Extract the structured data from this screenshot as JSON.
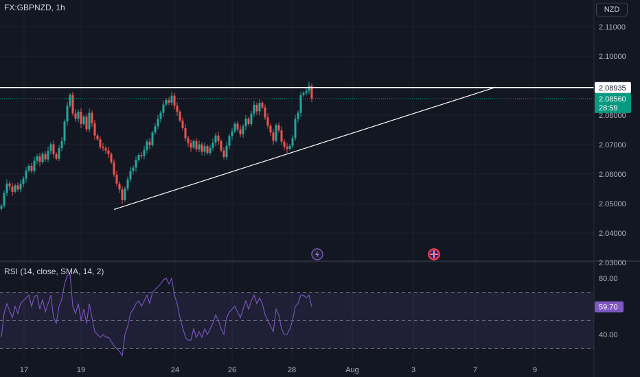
{
  "header": {
    "symbol": "FX:GBPNZD, 1h",
    "currency_button": "NZD"
  },
  "colors": {
    "background": "#131722",
    "up": "#26a69a",
    "down": "#ef5350",
    "rsi_line": "#7e57c2",
    "rsi_band": "#7e57c2",
    "current_price_tag": "#089981",
    "resistance_tag": "#ffffff",
    "rsi_tag": "#7e57c2",
    "trendline": "#ffffff"
  },
  "price_axis": {
    "ticks": [
      "2.11000",
      "2.10000",
      "2.09000",
      "2.08000",
      "2.07000",
      "2.06000",
      "2.05000",
      "2.04000",
      "2.03000"
    ],
    "resistance_label": "2.08935",
    "current_price_label": "2.08560",
    "countdown_label": "28:59"
  },
  "rsi_axis": {
    "ticks": [
      "80.00",
      "40.00"
    ],
    "value_label": "59.70"
  },
  "rsi_title": "RSI (14, close, SMA, 14, 2)",
  "time_axis": [
    "17",
    "19",
    "24",
    "26",
    "28",
    "Aug",
    "3",
    "7",
    "9"
  ],
  "events": [
    {
      "icon": "lightning-icon",
      "name": "economic-event-lightning"
    },
    {
      "icon": "uk-flag-icon",
      "name": "economic-event-uk"
    }
  ],
  "chart_data": {
    "type": "candlestick",
    "symbol": "FX:GBPNZD",
    "interval": "1h",
    "ylim": [
      2.026,
      2.115
    ],
    "price_ticks": [
      2.11,
      2.1,
      2.09,
      2.08,
      2.07,
      2.06,
      2.05,
      2.04,
      2.03
    ],
    "resistance": 2.08935,
    "last_price": 2.0856,
    "x_ticks": [
      "17",
      "19",
      "24",
      "26",
      "28",
      "Aug",
      "3",
      "7",
      "9"
    ],
    "closes": [
      2.0493,
      2.0535,
      2.0568,
      2.0558,
      2.054,
      2.0562,
      2.0548,
      2.0567,
      2.0585,
      2.0612,
      2.0628,
      2.0611,
      2.0645,
      2.066,
      2.0641,
      2.0668,
      2.065,
      2.0679,
      2.0701,
      2.0668,
      2.0652,
      2.0688,
      2.0712,
      2.0778,
      2.0832,
      2.0869,
      2.0806,
      2.0788,
      2.0812,
      2.077,
      2.0795,
      2.0752,
      2.0808,
      2.0772,
      2.0731,
      2.0718,
      2.0692,
      2.0688,
      2.068,
      2.0668,
      2.064,
      2.0598,
      2.0568,
      2.0548,
      2.0512,
      2.0551,
      2.0582,
      2.0611,
      2.0622,
      2.0648,
      2.0665,
      2.0661,
      2.0682,
      2.071,
      2.0698,
      2.0741,
      2.0762,
      2.0787,
      2.0808,
      2.0836,
      2.0851,
      2.0842,
      2.0866,
      2.0832,
      2.0812,
      2.0782,
      2.0756,
      2.0722,
      2.0705,
      2.069,
      2.0712,
      2.0684,
      2.0701,
      2.0676,
      2.0695,
      2.0672,
      2.0689,
      2.0707,
      2.0731,
      2.0712,
      2.068,
      2.0658,
      2.0696,
      2.0729,
      2.0745,
      2.0771,
      2.0752,
      2.0735,
      2.0762,
      2.0788,
      2.077,
      2.0805,
      2.0835,
      2.0813,
      2.0842,
      2.0826,
      2.0792,
      2.0764,
      2.0741,
      2.0713,
      2.0766,
      2.0748,
      2.071,
      2.0693,
      2.0686,
      2.0696,
      2.0722,
      2.0787,
      2.0808,
      2.0868,
      2.0875,
      2.0882,
      2.09,
      2.0856
    ],
    "rsi": [
      38,
      55,
      62,
      57,
      52,
      60,
      55,
      62,
      64,
      66,
      68,
      60,
      67,
      68,
      58,
      65,
      56,
      62,
      68,
      52,
      48,
      60,
      65,
      76,
      82,
      83,
      60,
      55,
      62,
      50,
      58,
      48,
      62,
      52,
      42,
      40,
      38,
      40,
      38,
      38,
      35,
      32,
      30,
      28,
      25,
      40,
      46,
      55,
      58,
      62,
      64,
      60,
      64,
      68,
      62,
      70,
      72,
      74,
      76,
      79,
      80,
      76,
      80,
      68,
      62,
      52,
      45,
      38,
      36,
      36,
      44,
      38,
      42,
      38,
      44,
      40,
      44,
      48,
      54,
      50,
      44,
      40,
      52,
      56,
      58,
      60,
      56,
      52,
      58,
      64,
      58,
      64,
      68,
      62,
      66,
      62,
      54,
      50,
      46,
      42,
      58,
      54,
      44,
      40,
      40,
      44,
      50,
      60,
      62,
      68,
      68,
      66,
      68,
      59.7
    ],
    "rsi_levels": [
      70,
      50,
      30
    ],
    "rsi_ticks": [
      80,
      40
    ],
    "rsi_last": 59.7,
    "trendline": {
      "from": {
        "candle": 41,
        "price": 2.048
      },
      "to": {
        "candle": 180,
        "price": 2.0895
      }
    }
  }
}
